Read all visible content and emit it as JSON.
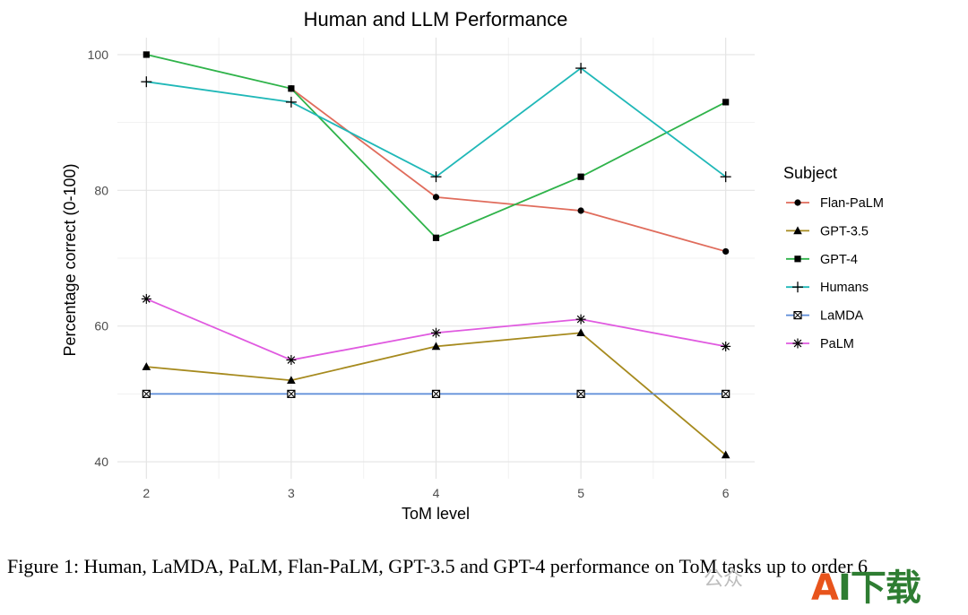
{
  "chart_data": {
    "type": "line",
    "title": "Human and LLM Performance",
    "xlabel": "ToM level",
    "ylabel": "Percentage correct (0-100)",
    "x": [
      2,
      3,
      4,
      5,
      6
    ],
    "xlim": [
      1.8,
      6.2
    ],
    "ylim": [
      37.5,
      102.5
    ],
    "yticks": [
      40,
      60,
      80,
      100
    ],
    "grid": true,
    "legend_title": "Subject",
    "legend_position": "right",
    "series": [
      {
        "name": "Flan-PaLM",
        "color": "#e06c5c",
        "marker": "circle",
        "values": [
          null,
          95,
          79,
          77,
          71
        ]
      },
      {
        "name": "GPT-3.5",
        "color": "#a68a1e",
        "marker": "triangle",
        "values": [
          54,
          52,
          57,
          59,
          41
        ]
      },
      {
        "name": "GPT-4",
        "color": "#2fb34a",
        "marker": "square",
        "values": [
          100,
          95,
          73,
          82,
          93
        ]
      },
      {
        "name": "Humans",
        "color": "#20b8b8",
        "marker": "plus",
        "values": [
          96,
          93,
          82,
          98,
          82
        ]
      },
      {
        "name": "LaMDA",
        "color": "#5b8bd8",
        "marker": "boxx",
        "values": [
          50,
          50,
          50,
          50,
          50
        ]
      },
      {
        "name": "PaLM",
        "color": "#e05ae0",
        "marker": "asterisk",
        "values": [
          64,
          55,
          59,
          61,
          57
        ]
      }
    ]
  },
  "caption": "Figure 1: Human, LaMDA, PaLM, Flan-PaLM, GPT-3.5 and GPT-4 performance on ToM tasks up to order 6",
  "watermark_text": "公众",
  "logo": {
    "a": "A",
    "rest": "I下载"
  }
}
